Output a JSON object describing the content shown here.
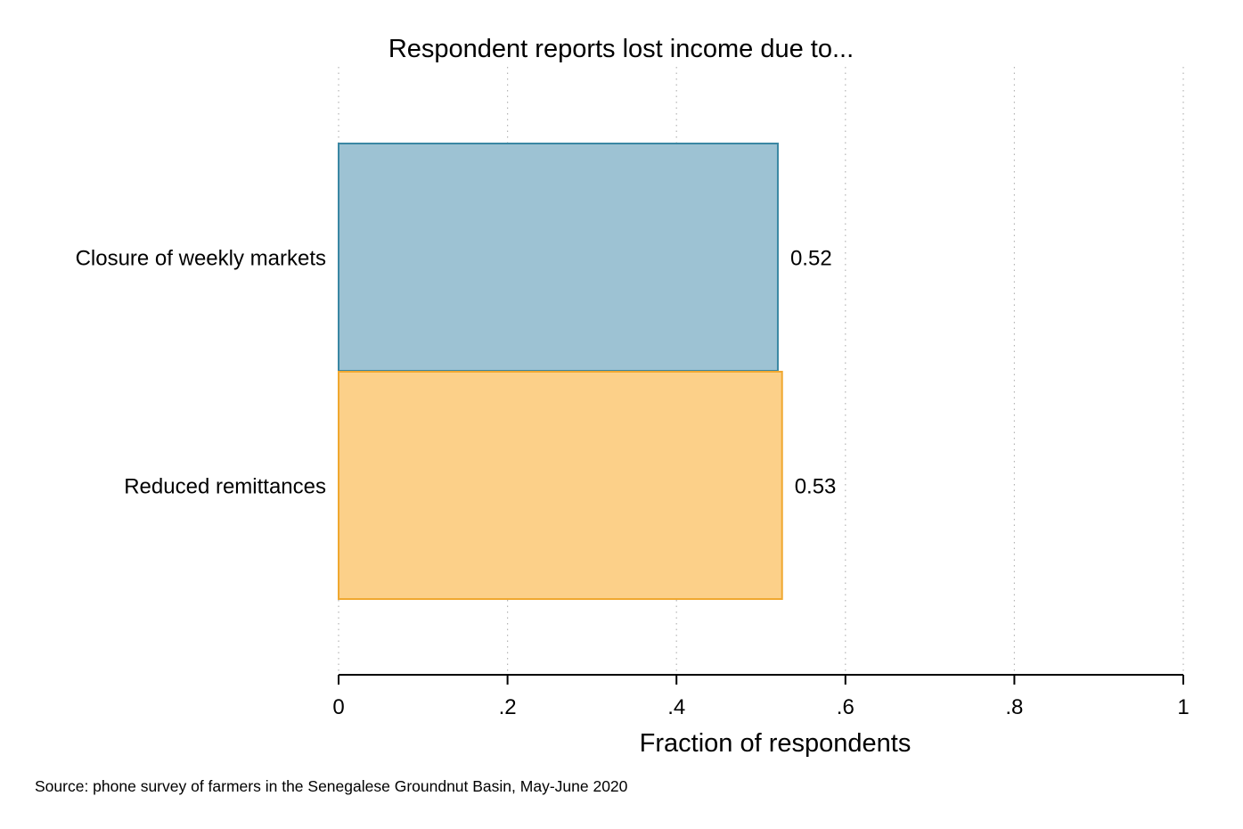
{
  "chart_data": {
    "type": "bar",
    "orientation": "horizontal",
    "title": "Respondent reports lost income due to...",
    "xlabel": "Fraction of respondents",
    "ylabel": "",
    "xlim": [
      0,
      1
    ],
    "x_ticks": [
      0,
      0.2,
      0.4,
      0.6,
      0.8,
      1
    ],
    "x_tick_labels": [
      "0",
      ".2",
      ".4",
      ".6",
      ".8",
      "1"
    ],
    "grid": "vertical dotted",
    "categories": [
      "Closure of weekly markets",
      "Reduced remittances"
    ],
    "values": [
      0.52,
      0.525
    ],
    "value_labels": [
      "0.52",
      "0.53"
    ],
    "colors": [
      {
        "fill": "#9dc2d3",
        "stroke": "#3a87a3"
      },
      {
        "fill": "#fcd089",
        "stroke": "#f0a830"
      }
    ],
    "note": "Source: phone survey of farmers in the Senegalese Groundnut Basin, May-June 2020"
  }
}
